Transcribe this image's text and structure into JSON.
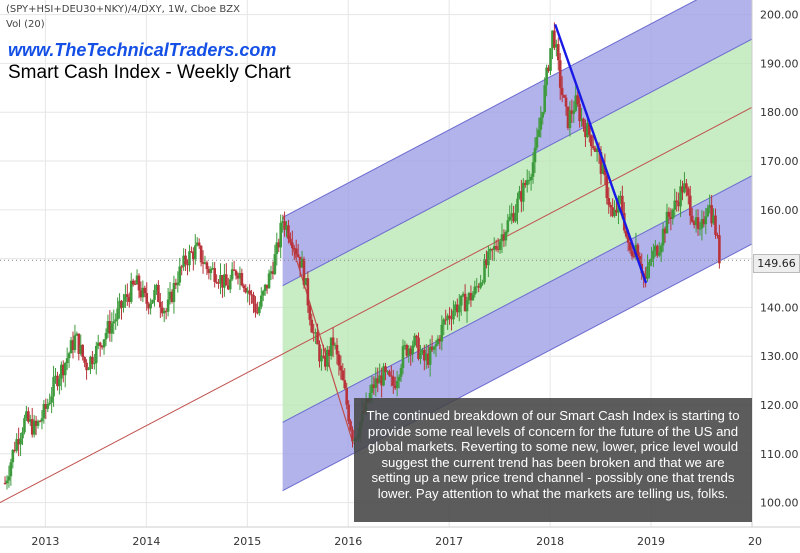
{
  "header": {
    "symbol_line": "(SPY+HSI+DEU30+NKY)/4/DXY, 1W, Cboe BZX",
    "volume_label": "Vol (20)"
  },
  "website": "www.TheTechnicalTraders.com",
  "title": "Smart Cash Index - Weekly Chart",
  "current_price_label": "149.66",
  "annotation": "The continued breakdown of our Smart Cash Index is starting to provide some real levels of concern for the future of the US and global markets.  Reverting to some new, lower, price level would suggest the current trend has been broken and that we are setting up a new price trend channel - possibly one that trends lower.  Pay attention to what the markets are telling us, folks.",
  "colors": {
    "up_candle": "#3d9b3d",
    "down_candle": "#b8333a",
    "outer_channel": "#9a9ae6",
    "inner_channel": "#b6e6b0",
    "median_line": "#c0504d",
    "downtrend_line": "#1a1ae6"
  },
  "chart_data": {
    "type": "candlestick",
    "x_tick_labels": [
      "2013",
      "2014",
      "2015",
      "2016",
      "2017",
      "2018",
      "2019",
      "20"
    ],
    "y_tick_labels": [
      "100.00",
      "110.00",
      "120.00",
      "130.00",
      "140.00",
      "150.00",
      "160.00",
      "170.00",
      "180.00",
      "190.00",
      "200.00"
    ],
    "x_range": [
      2012.55,
      2020.0
    ],
    "ylim": [
      95,
      203
    ],
    "grid": true,
    "weekly_close_path": [
      [
        2012.6,
        104
      ],
      [
        2012.7,
        112
      ],
      [
        2012.8,
        117
      ],
      [
        2012.9,
        115
      ],
      [
        2013.0,
        119
      ],
      [
        2013.1,
        125
      ],
      [
        2013.2,
        129
      ],
      [
        2013.3,
        134
      ],
      [
        2013.4,
        128
      ],
      [
        2013.5,
        131
      ],
      [
        2013.6,
        135
      ],
      [
        2013.7,
        138
      ],
      [
        2013.8,
        142
      ],
      [
        2013.9,
        145
      ],
      [
        2014.0,
        141
      ],
      [
        2014.1,
        143
      ],
      [
        2014.2,
        139
      ],
      [
        2014.3,
        146
      ],
      [
        2014.4,
        150
      ],
      [
        2014.5,
        152
      ],
      [
        2014.6,
        148
      ],
      [
        2014.7,
        147
      ],
      [
        2014.8,
        144
      ],
      [
        2014.9,
        148
      ],
      [
        2015.0,
        144
      ],
      [
        2015.1,
        139
      ],
      [
        2015.2,
        145
      ],
      [
        2015.3,
        152
      ],
      [
        2015.35,
        158
      ],
      [
        2015.45,
        154
      ],
      [
        2015.55,
        148
      ],
      [
        2015.65,
        135
      ],
      [
        2015.75,
        128
      ],
      [
        2015.85,
        133
      ],
      [
        2015.95,
        124
      ],
      [
        2016.05,
        113
      ],
      [
        2016.15,
        118
      ],
      [
        2016.25,
        124
      ],
      [
        2016.35,
        126
      ],
      [
        2016.45,
        124
      ],
      [
        2016.55,
        131
      ],
      [
        2016.65,
        133
      ],
      [
        2016.75,
        129
      ],
      [
        2016.85,
        131
      ],
      [
        2016.95,
        137
      ],
      [
        2017.05,
        140
      ],
      [
        2017.15,
        141
      ],
      [
        2017.25,
        143
      ],
      [
        2017.35,
        148
      ],
      [
        2017.45,
        152
      ],
      [
        2017.55,
        156
      ],
      [
        2017.65,
        160
      ],
      [
        2017.75,
        165
      ],
      [
        2017.85,
        171
      ],
      [
        2017.95,
        185
      ],
      [
        2018.03,
        197
      ],
      [
        2018.1,
        186
      ],
      [
        2018.17,
        178
      ],
      [
        2018.25,
        182
      ],
      [
        2018.32,
        178
      ],
      [
        2018.4,
        175
      ],
      [
        2018.48,
        171
      ],
      [
        2018.55,
        165
      ],
      [
        2018.62,
        158
      ],
      [
        2018.7,
        162
      ],
      [
        2018.78,
        151
      ],
      [
        2018.86,
        153
      ],
      [
        2018.94,
        145
      ],
      [
        2019.0,
        150
      ],
      [
        2019.08,
        153
      ],
      [
        2019.16,
        158
      ],
      [
        2019.24,
        161
      ],
      [
        2019.32,
        165
      ],
      [
        2019.4,
        160
      ],
      [
        2019.48,
        154
      ],
      [
        2019.56,
        162
      ],
      [
        2019.63,
        157
      ],
      [
        2019.68,
        150
      ]
    ],
    "pitchfork": {
      "pivot_low": [
        2016.05,
        112
      ],
      "pivot_high": [
        2015.35,
        159
      ],
      "median_start": [
        2012.55,
        100
      ],
      "median_end": [
        2020.0,
        181
      ],
      "inner_half_width": 14,
      "outer_half_width": 28
    },
    "downtrend_line": [
      [
        2018.05,
        198
      ],
      [
        2018.95,
        145
      ]
    ]
  }
}
